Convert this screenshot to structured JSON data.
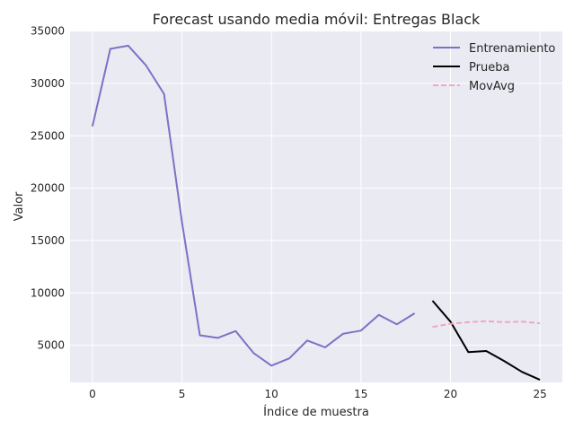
{
  "chart_data": {
    "type": "line",
    "title": "Forecast usando media móvil: Entregas Black",
    "xlabel": "Índice de muestra",
    "ylabel": "Valor",
    "xlim": [
      -1.25,
      26.25
    ],
    "ylim": [
      1450,
      35050
    ],
    "xticks": [
      0,
      5,
      10,
      15,
      20,
      25
    ],
    "yticks": [
      5000,
      10000,
      15000,
      20000,
      25000,
      30000,
      35000
    ],
    "grid": true,
    "legend_position": "top-right",
    "series": [
      {
        "name": "Entrenamiento",
        "color": "#7b72c7",
        "dash": "solid",
        "x": [
          0,
          1,
          2,
          3,
          4,
          5,
          6,
          7,
          8,
          9,
          10,
          11,
          12,
          13,
          14,
          15,
          16,
          17,
          18
        ],
        "y": [
          25900,
          33300,
          33600,
          31700,
          29000,
          16800,
          5950,
          5700,
          6350,
          4250,
          3050,
          3750,
          5450,
          4800,
          6100,
          6400,
          7900,
          7000,
          8050
        ]
      },
      {
        "name": "Prueba",
        "color": "#000000",
        "dash": "solid",
        "x": [
          19,
          20,
          21,
          22,
          23,
          24,
          25
        ],
        "y": [
          9250,
          7250,
          4350,
          4450,
          3500,
          2450,
          1700
        ]
      },
      {
        "name": "MovAvg",
        "color": "#f4a6be",
        "dash": "dashed",
        "x": [
          19,
          20,
          21,
          22,
          23,
          24,
          25
        ],
        "y": [
          6750,
          7050,
          7200,
          7300,
          7200,
          7250,
          7100
        ]
      }
    ]
  }
}
